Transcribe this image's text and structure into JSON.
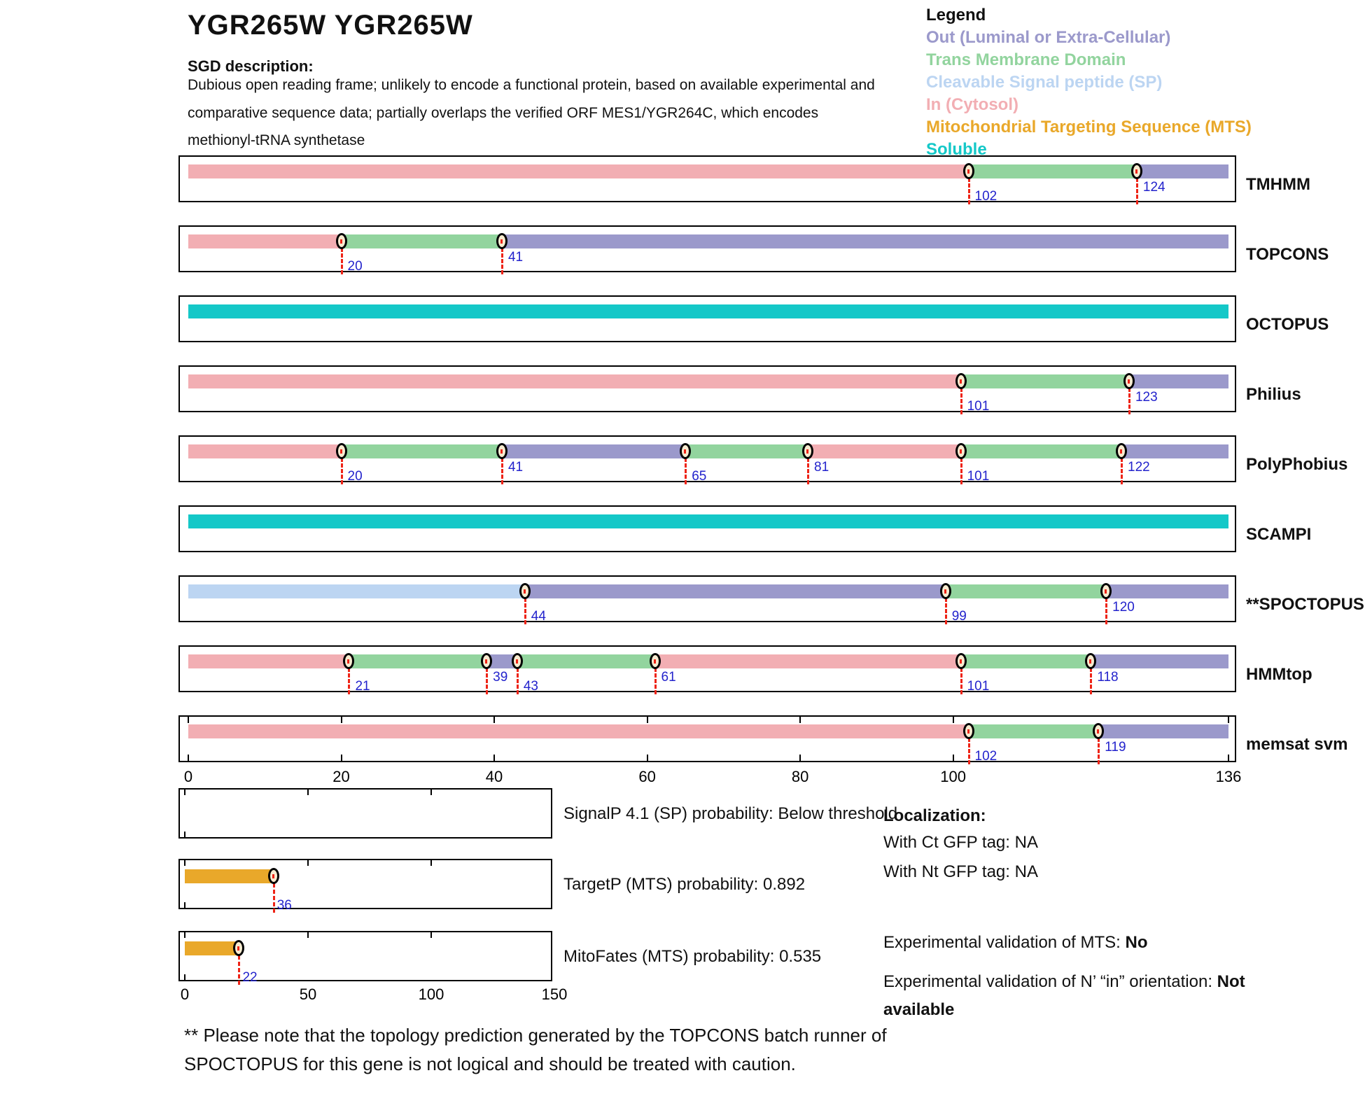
{
  "title": "YGR265W  YGR265W",
  "sgd": {
    "label": "SGD description:",
    "lines": [
      "Dubious open reading frame; unlikely to encode a functional protein, based on available experimental and",
      "comparative sequence data; partially overlaps the verified ORF MES1/YGR264C, which encodes",
      "methionyl-tRNA synthetase"
    ]
  },
  "legend": {
    "title": "Legend",
    "items": [
      {
        "label": "Out (Luminal or Extra-Cellular)",
        "color": "#9B99CB",
        "key": "out"
      },
      {
        "label": "Trans Membrane Domain",
        "color": "#92D49E",
        "key": "tm"
      },
      {
        "label": "Cleavable Signal peptide (SP)",
        "color": "#BCD5F2",
        "key": "sp"
      },
      {
        "label": "In (Cytosol)",
        "color": "#F2AEB3",
        "key": "in"
      },
      {
        "label": "Mitochondrial Targeting Sequence (MTS)",
        "color": "#E9A82A",
        "key": "mts"
      },
      {
        "label": "Soluble",
        "color": "#14C8C8",
        "key": "soluble"
      }
    ]
  },
  "chart_data": {
    "type": "bar",
    "subtype": "membrane-topology-prediction-tracks",
    "sequence_axis": {
      "min": 0,
      "max": 136,
      "ticks": [
        0,
        20,
        40,
        60,
        80,
        100,
        136
      ]
    },
    "segment_colors": {
      "in": "#F2AEB3",
      "tm": "#92D49E",
      "out": "#9B99CB",
      "sp": "#BCD5F2",
      "soluble": "#14C8C8",
      "mts": "#E9A82A"
    },
    "marker_label_color": "#2323CC",
    "marker_line_color": "#EE2417",
    "tracks": [
      {
        "name": "TMHMM",
        "segments": [
          {
            "type": "in",
            "start": 0,
            "end": 102
          },
          {
            "type": "tm",
            "start": 102,
            "end": 124
          },
          {
            "type": "out",
            "start": 124,
            "end": 136
          }
        ],
        "markers": [
          {
            "pos": 102,
            "level": "low"
          },
          {
            "pos": 124,
            "level": "high"
          }
        ]
      },
      {
        "name": "TOPCONS",
        "segments": [
          {
            "type": "in",
            "start": 0,
            "end": 20
          },
          {
            "type": "tm",
            "start": 20,
            "end": 41
          },
          {
            "type": "out",
            "start": 41,
            "end": 136
          }
        ],
        "markers": [
          {
            "pos": 20,
            "level": "low"
          },
          {
            "pos": 41,
            "level": "high"
          }
        ]
      },
      {
        "name": "OCTOPUS",
        "segments": [
          {
            "type": "soluble",
            "start": 0,
            "end": 136
          }
        ],
        "markers": []
      },
      {
        "name": "Philius",
        "segments": [
          {
            "type": "in",
            "start": 0,
            "end": 101
          },
          {
            "type": "tm",
            "start": 101,
            "end": 123
          },
          {
            "type": "out",
            "start": 123,
            "end": 136
          }
        ],
        "markers": [
          {
            "pos": 101,
            "level": "low"
          },
          {
            "pos": 123,
            "level": "high"
          }
        ]
      },
      {
        "name": "PolyPhobius",
        "segments": [
          {
            "type": "in",
            "start": 0,
            "end": 20
          },
          {
            "type": "tm",
            "start": 20,
            "end": 41
          },
          {
            "type": "out",
            "start": 41,
            "end": 65
          },
          {
            "type": "tm",
            "start": 65,
            "end": 81
          },
          {
            "type": "in",
            "start": 81,
            "end": 101
          },
          {
            "type": "tm",
            "start": 101,
            "end": 122
          },
          {
            "type": "out",
            "start": 122,
            "end": 136
          }
        ],
        "markers": [
          {
            "pos": 20,
            "level": "low"
          },
          {
            "pos": 41,
            "level": "high"
          },
          {
            "pos": 65,
            "level": "low"
          },
          {
            "pos": 81,
            "level": "high"
          },
          {
            "pos": 101,
            "level": "low"
          },
          {
            "pos": 122,
            "level": "high"
          }
        ]
      },
      {
        "name": "SCAMPI",
        "segments": [
          {
            "type": "soluble",
            "start": 0,
            "end": 136
          }
        ],
        "markers": []
      },
      {
        "name": "**SPOCTOPUS",
        "segments": [
          {
            "type": "sp",
            "start": 0,
            "end": 44
          },
          {
            "type": "out",
            "start": 44,
            "end": 99
          },
          {
            "type": "tm",
            "start": 99,
            "end": 120
          },
          {
            "type": "out",
            "start": 120,
            "end": 136
          }
        ],
        "markers": [
          {
            "pos": 44,
            "level": "low"
          },
          {
            "pos": 99,
            "level": "low"
          },
          {
            "pos": 120,
            "level": "high"
          }
        ]
      },
      {
        "name": "HMMtop",
        "segments": [
          {
            "type": "in",
            "start": 0,
            "end": 21
          },
          {
            "type": "tm",
            "start": 21,
            "end": 39
          },
          {
            "type": "out",
            "start": 39,
            "end": 43
          },
          {
            "type": "tm",
            "start": 43,
            "end": 61
          },
          {
            "type": "in",
            "start": 61,
            "end": 101
          },
          {
            "type": "tm",
            "start": 101,
            "end": 118
          },
          {
            "type": "out",
            "start": 118,
            "end": 136
          }
        ],
        "markers": [
          {
            "pos": 21,
            "level": "low"
          },
          {
            "pos": 39,
            "level": "high"
          },
          {
            "pos": 43,
            "level": "low"
          },
          {
            "pos": 61,
            "level": "high"
          },
          {
            "pos": 101,
            "level": "low"
          },
          {
            "pos": 118,
            "level": "high"
          }
        ]
      },
      {
        "name": "memsat svm",
        "segments": [
          {
            "type": "in",
            "start": 0,
            "end": 102
          },
          {
            "type": "tm",
            "start": 102,
            "end": 119
          },
          {
            "type": "out",
            "start": 119,
            "end": 136
          }
        ],
        "markers": [
          {
            "pos": 102,
            "level": "low"
          },
          {
            "pos": 119,
            "level": "high"
          }
        ],
        "show_axis_ticks": true
      }
    ],
    "probability_plots": {
      "axis": {
        "min": 0,
        "max": 150,
        "ticks": [
          0,
          50,
          100,
          150
        ]
      },
      "bar_color_key": "mts",
      "plots": [
        {
          "label": "SignalP 4.1 (SP) probability: Below threshold",
          "bar_end": null
        },
        {
          "label": "TargetP (MTS) probability: 0.892",
          "bar_end": 36
        },
        {
          "label": "MitoFates (MTS) probability: 0.535",
          "bar_end": 22,
          "show_axis_labels": true
        }
      ]
    }
  },
  "localization": {
    "title": "Localization:",
    "ct_line": "With Ct GFP tag: NA",
    "nt_line": "With Nt GFP tag: NA",
    "mts_prefix": "Experimental validation of MTS: ",
    "mts_value": "No",
    "orientation_prefix": "Experimental validation of N’ “in” orientation: ",
    "orientation_value": "Not available"
  },
  "footnote_lines": [
    "** Please note that the topology prediction generated by the TOPCONS batch runner of",
    "SPOCTOPUS for this gene is not logical and should be treated with caution."
  ]
}
